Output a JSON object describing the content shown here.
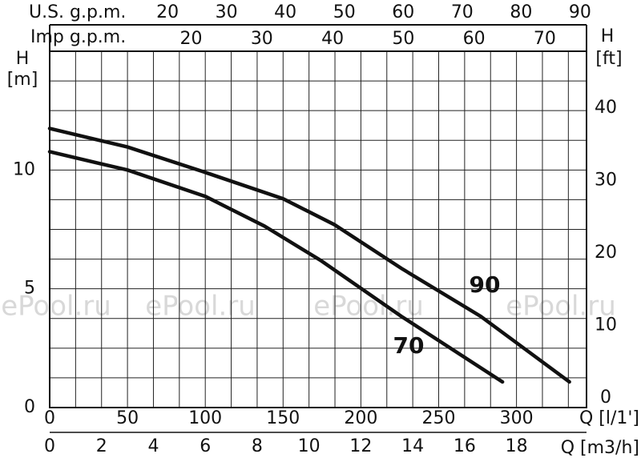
{
  "chart_data": {
    "type": "line",
    "top_axis_1_label": "U.S. g.p.m.",
    "top_axis_2_label": "Imp g.p.m.",
    "y_label": [
      "H",
      "[m]"
    ],
    "y2_label": [
      "H",
      "[ft]"
    ],
    "x_label": "Q [l/1']",
    "x2_label": "Q [m3/h]",
    "watermark": "ePool.ru",
    "xlim": [
      0,
      345
    ],
    "xticks": [
      0,
      50,
      100,
      150,
      200,
      250,
      300
    ],
    "x2lim": [
      0,
      20.7
    ],
    "x2ticks": [
      0,
      2,
      4,
      6,
      8,
      10,
      12,
      14,
      16,
      18
    ],
    "x2grid": [
      1,
      2,
      3,
      4,
      5,
      6,
      7,
      8,
      9,
      10,
      11,
      12,
      13,
      14,
      15,
      16,
      17,
      18,
      19,
      20
    ],
    "usgpm_lim": [
      0,
      91.1
    ],
    "usgpm_ticks": [
      20,
      30,
      40,
      50,
      60,
      70,
      80,
      90
    ],
    "impgpm_lim": [
      0,
      75.9
    ],
    "impgpm_ticks": [
      20,
      30,
      40,
      50,
      60,
      70
    ],
    "ylim": [
      0,
      15
    ],
    "yticks": [
      0,
      5,
      10
    ],
    "ygrid": [
      1.25,
      2.5,
      3.75,
      5,
      6.25,
      7.5,
      8.75,
      10,
      11.25,
      12.5,
      13.75
    ],
    "y2lim": [
      0,
      49.2
    ],
    "y2ticks": [
      0,
      10,
      20,
      30,
      40
    ],
    "series": [
      {
        "name": "90",
        "color": "#111111",
        "x": [
          0,
          50,
          100,
          150,
          183,
          226,
          277,
          334
        ],
        "values": [
          11.75,
          10.97,
          9.9,
          8.79,
          7.7,
          5.86,
          3.84,
          1.08
        ]
      },
      {
        "name": "70",
        "color": "#111111",
        "x": [
          0,
          50,
          100,
          138,
          174,
          226,
          291
        ],
        "values": [
          10.77,
          10.0,
          8.89,
          7.64,
          6.2,
          3.84,
          1.08
        ]
      }
    ]
  }
}
